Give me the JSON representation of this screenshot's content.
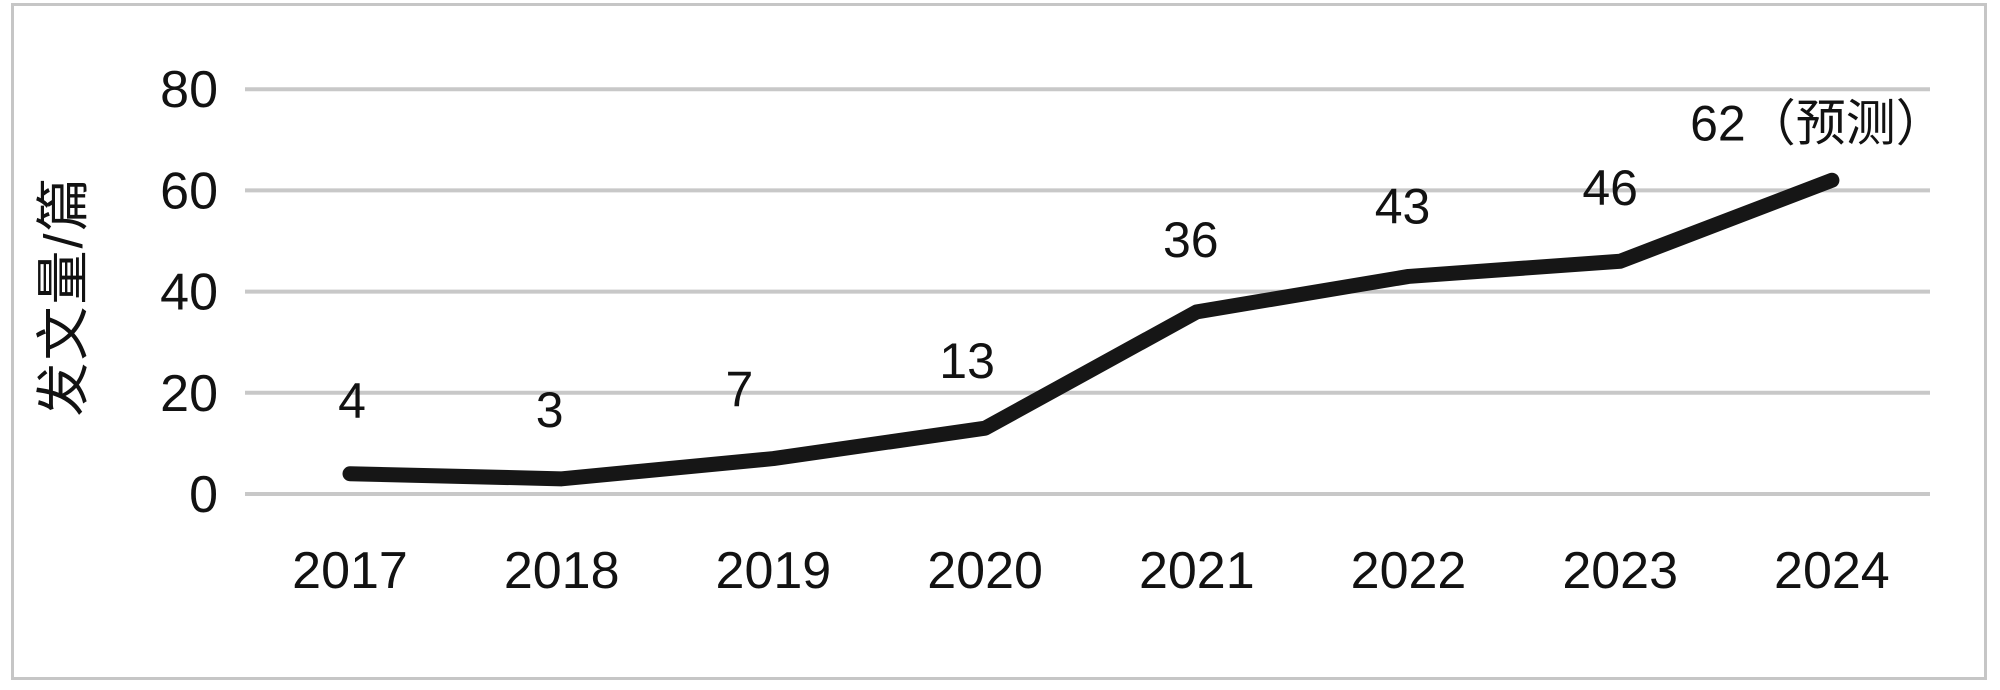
{
  "chart_data": {
    "type": "line",
    "title": "",
    "xlabel": "",
    "ylabel": "发文量/篇",
    "categories": [
      "2017",
      "2018",
      "2019",
      "2020",
      "2021",
      "2022",
      "2023",
      "2024"
    ],
    "values": [
      4,
      3,
      7,
      13,
      36,
      43,
      46,
      62
    ],
    "point_labels": [
      "4",
      "3",
      "7",
      "13",
      "36",
      "43",
      "46",
      "62（预测）"
    ],
    "y_ticks": [
      80,
      60,
      40,
      20,
      0
    ],
    "ylim": [
      0,
      80
    ],
    "grid": true,
    "legend": "none",
    "colors": {
      "line": "#161616",
      "gridline": "#c8c8c8",
      "text": "#121212",
      "frame": "#c6c6c6",
      "background": "#ffffff"
    }
  }
}
